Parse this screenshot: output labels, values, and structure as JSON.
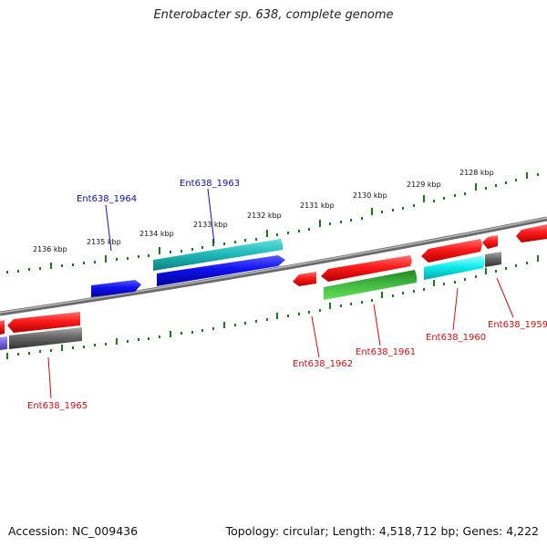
{
  "title": "Enterobacter sp. 638, complete genome",
  "footer": {
    "accession": "Accession: NC_009436",
    "summary": "Topology: circular; Length: 4,518,712 bp; Genes: 4,222"
  },
  "colors": {
    "backbone": "#8a8a8a",
    "ticks": "#1a7a1a",
    "label_forward": "#1010a0",
    "label_reverse": "#cc1010",
    "red": "#ee1111",
    "blue": "#1111dd",
    "cyan_dark": "#22bbbb",
    "cyan": "#11eeee",
    "gray": "#666666",
    "green": "#33aa33",
    "violet": "#7766dd"
  },
  "kbp_ticks": [
    "2128 kbp",
    "2129 kbp",
    "2130 kbp",
    "2131 kbp",
    "2132 kbp",
    "2133 kbp",
    "2134 kbp",
    "2135 kbp",
    "2136 kbp"
  ],
  "gene_labels": {
    "g1964": "Ent638_1964",
    "g1963": "Ent638_1963",
    "g1965": "Ent638_1965",
    "g1962": "Ent638_1962",
    "g1961": "Ent638_1961",
    "g1960": "Ent638_1960",
    "g1959": "Ent638_1959"
  }
}
